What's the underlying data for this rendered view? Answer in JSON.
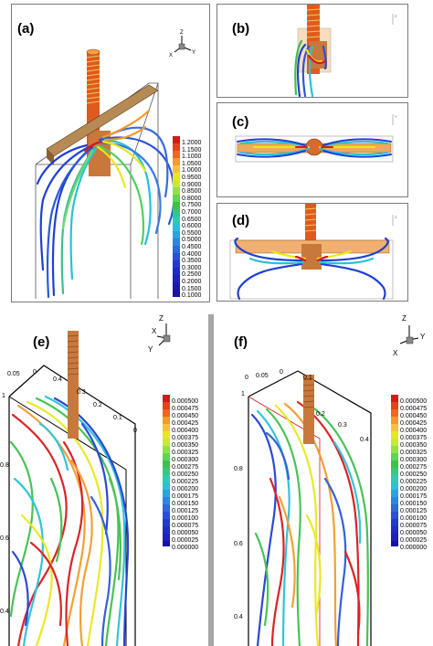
{
  "panels": {
    "a": {
      "label": "(a)"
    },
    "b": {
      "label": "(b)"
    },
    "c": {
      "label": "(c)"
    },
    "d": {
      "label": "(d)"
    },
    "e": {
      "label": "(e)"
    },
    "f": {
      "label": "(f)"
    }
  },
  "axes": {
    "x": "X",
    "y": "Y",
    "z": "Z"
  },
  "colorbar_a": [
    "1.2000",
    "1.1500",
    "1.1000",
    "1.0500",
    "1.0000",
    "0.9500",
    "0.9000",
    "0.8500",
    "0.8000",
    "0.7500",
    "0.7000",
    "0.6500",
    "0.6000",
    "0.5500",
    "0.5000",
    "0.4500",
    "0.4000",
    "0.3500",
    "0.3000",
    "0.2500",
    "0.2000",
    "0.1500",
    "0.1000"
  ],
  "colorbar_ef": [
    "0.000500",
    "0.000475",
    "0.000450",
    "0.000425",
    "0.000400",
    "0.000375",
    "0.000350",
    "0.000325",
    "0.000300",
    "0.000275",
    "0.000250",
    "0.000225",
    "0.000200",
    "0.000175",
    "0.000150",
    "0.000125",
    "0.000100",
    "0.000075",
    "0.000050",
    "0.000025",
    "0.000000"
  ],
  "ticks_e": {
    "top": [
      "0.05",
      "0",
      "0.4",
      "0.3",
      "0.2",
      "0.1",
      "0"
    ],
    "left": [
      "1",
      "0.8",
      "0.6",
      "0.4"
    ]
  },
  "ticks_f": {
    "top": [
      "0",
      "0.05",
      "0",
      "0.1",
      "0.2",
      "0.3",
      "0.4"
    ],
    "left": [
      "1",
      "0.8",
      "0.6",
      "0.4"
    ]
  },
  "colors": {
    "red": "#d7191c",
    "orange": "#f39a2a",
    "yellow": "#e8e81e",
    "green": "#3fbf4d",
    "cyan": "#29c1d6",
    "blue": "#1f3fd1",
    "copper": "#c9783c"
  }
}
